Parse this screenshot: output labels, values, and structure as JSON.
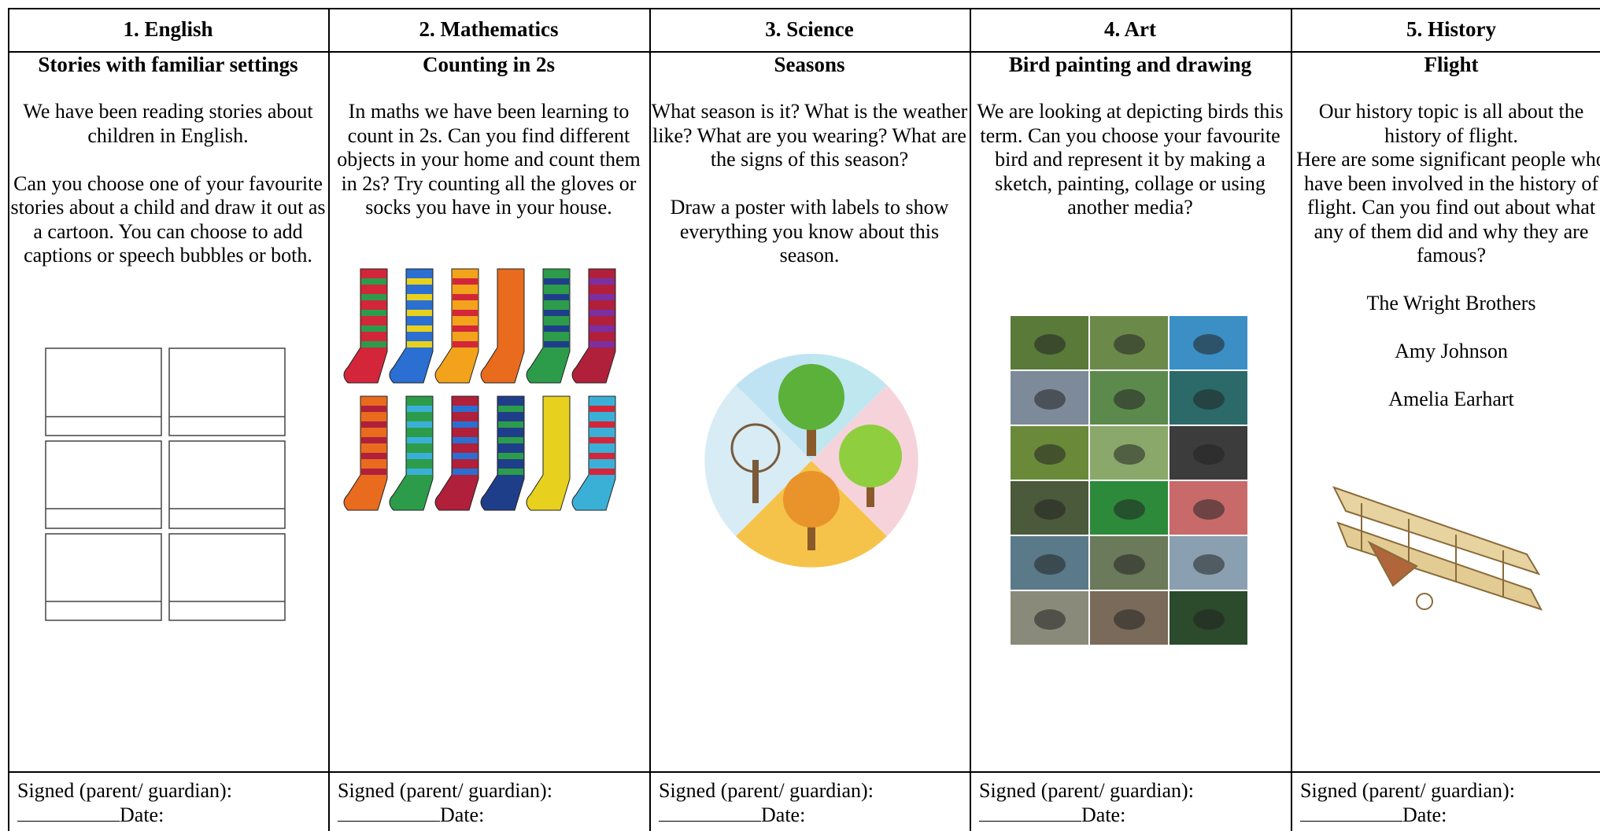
{
  "columns": [
    {
      "heading": "1. English",
      "subheading": "Stories with familiar settings",
      "paragraphs": [
        "We have been reading stories about children in English.",
        "Can you choose one of your favourite stories about a child and draw it out as a cartoon. You can choose to add captions or speech bubbles or both."
      ],
      "signed": "Signed (parent/ guardian):",
      "date": "Date:"
    },
    {
      "heading": "2. Mathematics",
      "subheading": "Counting in 2s",
      "paragraphs": [
        "In maths we have been learning to count in 2s. Can you find different objects in your home and count them in 2s? Try counting all the gloves or socks you have in your house."
      ],
      "signed": "Signed (parent/ guardian):",
      "date": "Date:"
    },
    {
      "heading": "3. Science",
      "subheading": "Seasons",
      "paragraphs": [
        "What season is it? What is the weather like? What are you wearing? What are the signs of this season?",
        "Draw a poster with labels to show everything you know about this season."
      ],
      "signed": "Signed (parent/ guardian):",
      "date": "Date:"
    },
    {
      "heading": "4. Art",
      "subheading": "Bird painting and drawing",
      "paragraphs": [
        "We are looking at depicting birds this term. Can you choose your favourite bird and represent it by making a sketch, painting, collage or using another media?"
      ],
      "signed": "Signed (parent/ guardian):",
      "date": "Date:"
    },
    {
      "heading": "5. History",
      "subheading": "Flight",
      "paragraphs": [
        "Our history topic is all about the history of flight.\nHere are some significant people who have been involved in the history of flight. Can you find out about what any of them did and why they are famous?",
        "The Wright Brothers",
        "Amy Johnson",
        "Amelia Earhart"
      ],
      "signed": "Signed (parent/ guardian):",
      "date": "Date:"
    }
  ]
}
